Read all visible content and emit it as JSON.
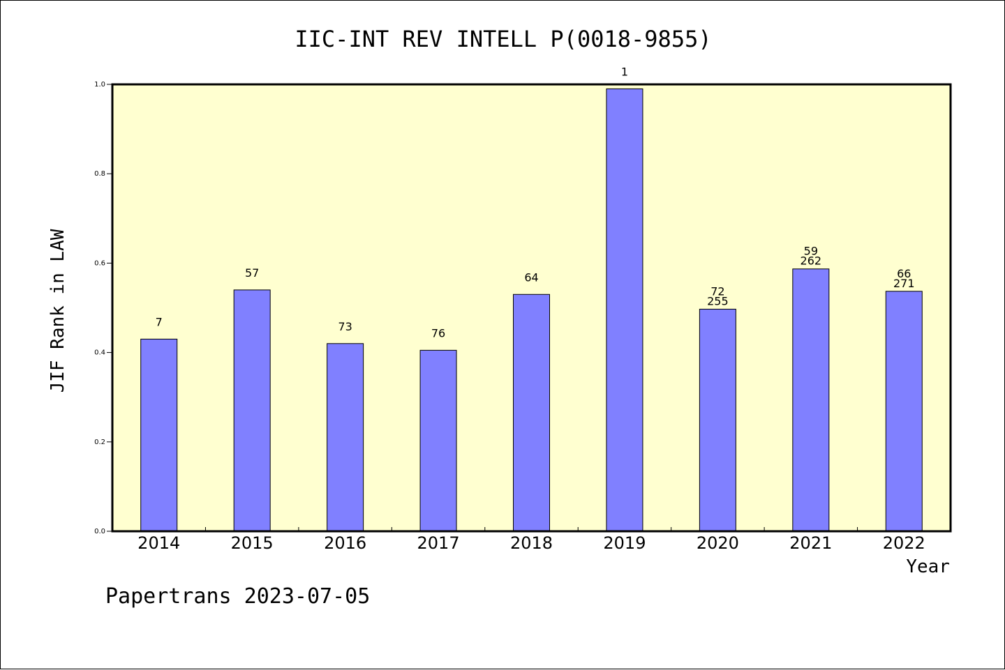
{
  "chart_data": {
    "type": "bar",
    "title": "IIC-INT REV INTELL P(0018-9855)",
    "xlabel": "Year",
    "ylabel": "JIF Rank in LAW",
    "ylim": [
      0,
      1.0
    ],
    "yticks": [
      "0.0",
      "0.2",
      "0.4",
      "0.6",
      "0.8",
      "1.0"
    ],
    "categories": [
      "2014",
      "2015",
      "2016",
      "2017",
      "2018",
      "2019",
      "2020",
      "2021",
      "2022"
    ],
    "values": [
      0.43,
      0.54,
      0.42,
      0.405,
      0.53,
      0.99,
      0.497,
      0.587,
      0.537
    ],
    "labels": [
      [
        "7"
      ],
      [
        "57"
      ],
      [
        "73"
      ],
      [
        "76"
      ],
      [
        "64"
      ],
      [
        "1"
      ],
      [
        "72",
        "255"
      ],
      [
        "59",
        "262"
      ],
      [
        "66",
        "271"
      ]
    ],
    "grid": false,
    "colors": {
      "bar": "#8080ff",
      "plot_bg": "#ffffd0",
      "bar_stroke": "#000000"
    }
  },
  "footer": {
    "text": "Papertrans 2023-07-05"
  }
}
